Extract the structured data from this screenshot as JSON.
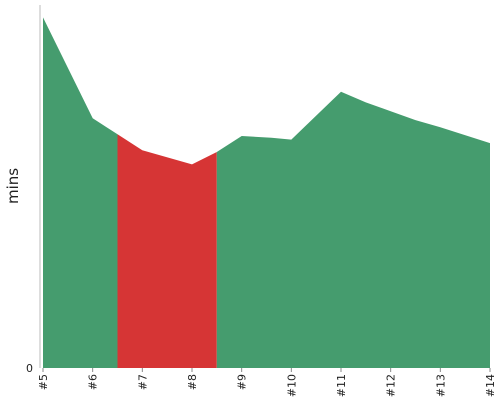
{
  "chart_data": {
    "type": "area",
    "title": "",
    "xlabel": "",
    "ylabel": "mins",
    "x": [
      "#5",
      "#6",
      "#7",
      "#8",
      "#9",
      "#10",
      "#11",
      "#12",
      "#13",
      "#14"
    ],
    "samples": [
      {
        "x": 5.0,
        "y": 19.8
      },
      {
        "x": 6.0,
        "y": 14.1
      },
      {
        "x": 6.5,
        "y": 13.2
      },
      {
        "x": 7.0,
        "y": 12.3
      },
      {
        "x": 8.0,
        "y": 11.5
      },
      {
        "x": 8.5,
        "y": 12.2
      },
      {
        "x": 9.0,
        "y": 13.1
      },
      {
        "x": 9.6,
        "y": 13.0
      },
      {
        "x": 10.0,
        "y": 12.9
      },
      {
        "x": 11.0,
        "y": 15.6
      },
      {
        "x": 11.5,
        "y": 15.0
      },
      {
        "x": 12.0,
        "y": 14.5
      },
      {
        "x": 12.5,
        "y": 14.0
      },
      {
        "x": 13.0,
        "y": 13.6
      },
      {
        "x": 14.0,
        "y": 12.7
      }
    ],
    "segments": [
      {
        "x_start": 5.0,
        "x_end": 6.5,
        "color": "#459c6e"
      },
      {
        "x_start": 6.5,
        "x_end": 8.5,
        "color": "#d63535"
      },
      {
        "x_start": 8.5,
        "x_end": 14.0,
        "color": "#459c6e"
      }
    ],
    "yticks": [
      "0"
    ],
    "ylim": [
      0,
      20.5
    ],
    "xlim": [
      5,
      14
    ],
    "grid": false,
    "legend": "none"
  }
}
